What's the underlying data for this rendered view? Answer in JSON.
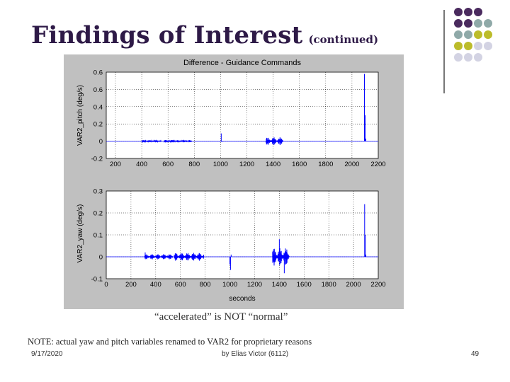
{
  "slide": {
    "title": "Findings of Interest",
    "title_suffix": "(continued)",
    "caption": "“accelerated” is NOT “normal”",
    "note": "NOTE: actual yaw and pitch variables renamed to VAR2 for proprietary reasons",
    "footer_date": "9/17/2020",
    "footer_author": "by Elias Victor (6112)",
    "page_number": "49"
  },
  "colors": {
    "title": "#2e1a47",
    "deco_purple": "#4a2a5e",
    "deco_teal": "#8fa9a8",
    "deco_olive": "#bcbc2a",
    "deco_lavender": "#d3d3e3",
    "figure_bg": "#c0c0c0",
    "plot_line": "#0000ff"
  },
  "decoration": {
    "rows": [
      [
        "purple",
        "purple",
        "purple",
        "none"
      ],
      [
        "purple",
        "purple",
        "teal",
        "teal"
      ],
      [
        "teal",
        "teal",
        "olive",
        "olive"
      ],
      [
        "olive",
        "olive",
        "lavender",
        "lavender"
      ],
      [
        "lavender",
        "lavender",
        "lavender",
        "none"
      ]
    ]
  },
  "chart_data": [
    {
      "type": "line",
      "title": "Difference - Guidance Commands",
      "xlabel": "",
      "ylabel": "VAR2_pitch (deg/s)",
      "x_ticks": [
        "200",
        "400",
        "600",
        "800",
        "1000",
        "1200",
        "1400",
        "1600",
        "1800",
        "2000",
        "2200"
      ],
      "y_ticks": [
        "0.6",
        "0.6",
        "0.4",
        "0.2",
        "0",
        "-0.2"
      ],
      "xlim": [
        130,
        2200
      ],
      "ylim": [
        -0.2,
        0.8
      ],
      "series": [
        {
          "bursts": [
            {
              "x_start": 400,
              "x_end": 550,
              "amplitude": 0.012
            },
            {
              "x_start": 570,
              "x_end": 660,
              "amplitude": 0.014
            },
            {
              "x_start": 660,
              "x_end": 780,
              "amplitude": 0.012
            },
            {
              "x_start": 1345,
              "x_end": 1475,
              "amplitude": 0.045
            }
          ],
          "spikes": [
            {
              "x": 1005,
              "y": 0.09
            },
            {
              "x": 1010,
              "y": -0.01
            },
            {
              "x": 2095,
              "y": 0.78
            },
            {
              "x": 2100,
              "y": 0.3
            },
            {
              "x": 2105,
              "y": 0.03
            }
          ]
        }
      ]
    },
    {
      "type": "line",
      "title": "",
      "xlabel": "seconds",
      "ylabel": "VAR2_yaw (deg/s)",
      "x_ticks": [
        "0",
        "200",
        "400",
        "600",
        "800",
        "1000",
        "1200",
        "1400",
        "1600",
        "1800",
        "2000",
        "2200"
      ],
      "y_ticks": [
        "0.3",
        "0.2",
        "0.1",
        "0",
        "-0.1"
      ],
      "xlim": [
        0,
        2200
      ],
      "ylim": [
        -0.1,
        0.3
      ],
      "series": [
        {
          "bursts": [
            {
              "x_start": 310,
              "x_end": 540,
              "amplitude": 0.012
            },
            {
              "x_start": 550,
              "x_end": 790,
              "amplitude": 0.018
            },
            {
              "x_start": 1345,
              "x_end": 1480,
              "amplitude": 0.04
            }
          ],
          "spikes": [
            {
              "x": 315,
              "y": 0.02
            },
            {
              "x": 1000,
              "y": -0.035
            },
            {
              "x": 1005,
              "y": -0.06
            },
            {
              "x": 1010,
              "y": 0.01
            },
            {
              "x": 1400,
              "y": 0.08
            },
            {
              "x": 1440,
              "y": -0.075
            },
            {
              "x": 2090,
              "y": 0.24
            },
            {
              "x": 2095,
              "y": 0.1
            },
            {
              "x": 2100,
              "y": 0.01
            }
          ]
        }
      ]
    }
  ]
}
